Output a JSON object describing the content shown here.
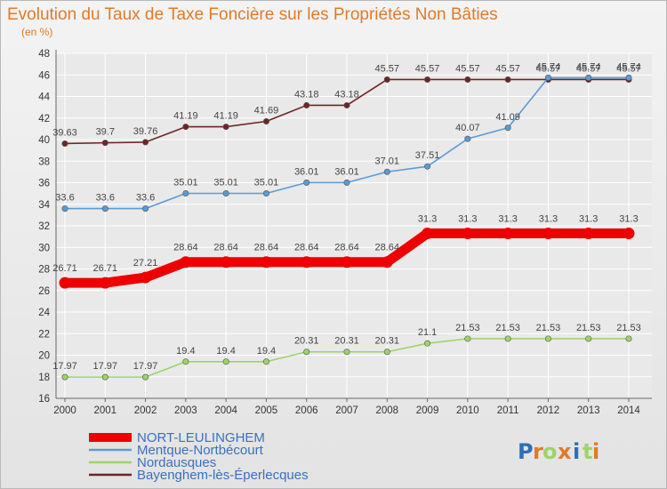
{
  "chart_data": {
    "type": "line",
    "title": "Evolution du Taux de Taxe Foncière sur les Propriétés Non Bâties",
    "subtitle": "(en %)",
    "xlabel": "",
    "ylabel": "(en %)",
    "x": [
      "2000",
      "2001",
      "2002",
      "2003",
      "2004",
      "2005",
      "2006",
      "2007",
      "2008",
      "2009",
      "2010",
      "2011",
      "2012",
      "2013",
      "2014"
    ],
    "y_ticks": [
      16,
      18,
      20,
      22,
      24,
      26,
      28,
      30,
      32,
      34,
      36,
      38,
      40,
      42,
      44,
      46,
      48
    ],
    "ylim": [
      16,
      48
    ],
    "grid": true,
    "legend_position": "bottom-left",
    "series": [
      {
        "name": "NORT-LEULINGHEM",
        "color": "#ee0000",
        "values": [
          26.71,
          26.71,
          27.21,
          28.64,
          28.64,
          28.64,
          28.64,
          28.64,
          28.64,
          31.3,
          31.3,
          31.3,
          31.3,
          31.3,
          31.3
        ],
        "labels": [
          "26.71",
          "26.71",
          "27.21",
          "28.64",
          "28.64",
          "28.64",
          "28.64",
          "28.64",
          "28.64",
          "31.3",
          "31.3",
          "31.3",
          "31.3",
          "31.3",
          "31.3"
        ]
      },
      {
        "name": "Mentque-Nortbécourt",
        "color": "#5b9bd5",
        "values": [
          33.6,
          33.6,
          33.6,
          35.01,
          35.01,
          35.01,
          36.01,
          36.01,
          37.01,
          37.51,
          40.07,
          41.09,
          45.74,
          45.74,
          45.74
        ],
        "labels": [
          "33.6",
          "33.6",
          "33.6",
          "35.01",
          "35.01",
          "35.01",
          "36.01",
          "36.01",
          "37.01",
          "37.51",
          "40.07",
          "41.09",
          "45.74",
          "45.74",
          "45.74"
        ]
      },
      {
        "name": "Nordausques",
        "color": "#9ed36a",
        "values": [
          17.97,
          17.97,
          17.97,
          19.4,
          19.4,
          19.4,
          20.31,
          20.31,
          20.31,
          21.1,
          21.53,
          21.53,
          21.53,
          21.53,
          21.53
        ],
        "labels": [
          "17.97",
          "17.97",
          "17.97",
          "19.4",
          "19.4",
          "19.4",
          "20.31",
          "20.31",
          "20.31",
          "21.1",
          "21.53",
          "21.53",
          "21.53",
          "21.53",
          "21.53"
        ]
      },
      {
        "name": "Bayenghem-lès-Éperlecques",
        "color": "#6e2426",
        "values": [
          39.63,
          39.7,
          39.76,
          41.19,
          41.19,
          41.69,
          43.18,
          43.18,
          45.57,
          45.57,
          45.57,
          45.57,
          45.57,
          45.57,
          45.57
        ],
        "labels": [
          "39.63",
          "39.7",
          "39.76",
          "41.19",
          "41.19",
          "41.69",
          "43.18",
          "43.18",
          "45.57",
          "45.57",
          "45.57",
          "45.57",
          "45.57",
          "45.57",
          "45.57"
        ]
      }
    ]
  },
  "logo": {
    "letters": [
      "P",
      "r",
      "o",
      "x",
      "i",
      "t",
      "i"
    ],
    "colors": [
      "#2f6fb5",
      "#e07a2b",
      "#9ed36a",
      "#e07a2b",
      "#2f6fb5",
      "#9ed36a",
      "#e07a2b"
    ]
  }
}
